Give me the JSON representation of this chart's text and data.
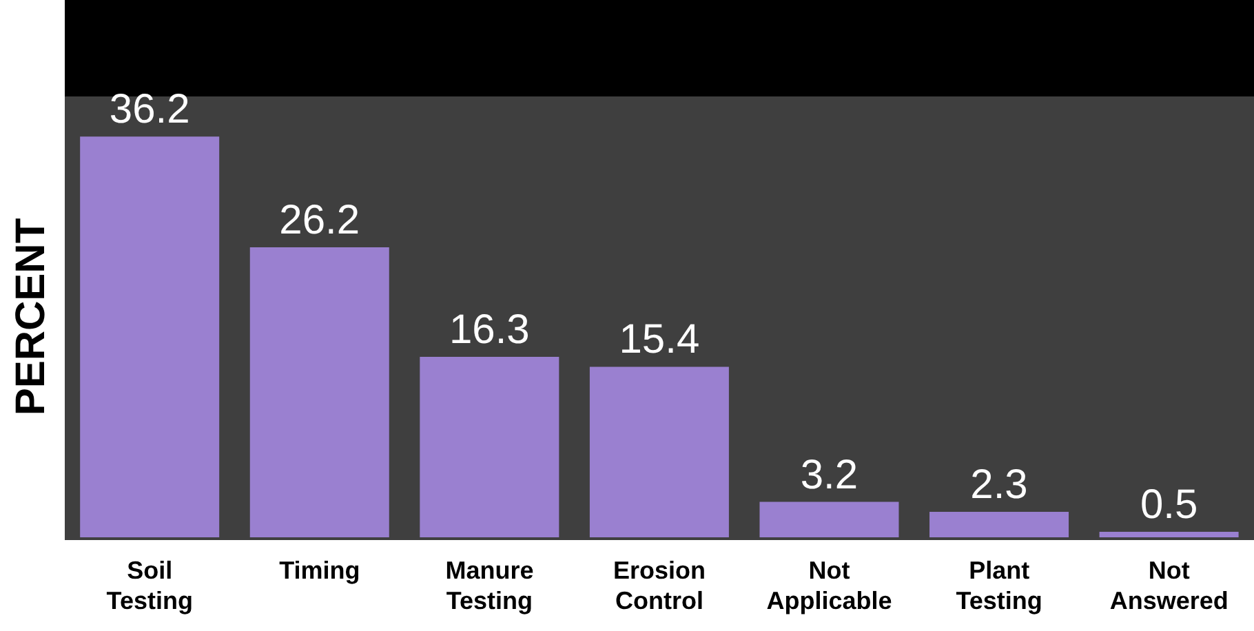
{
  "chart_data": {
    "type": "bar",
    "ylabel": "PERCENT",
    "categories": [
      "Soil Testing",
      "Timing",
      "Manure Testing",
      "Erosion Control",
      "Not Applicable",
      "Plant Testing",
      "Not Answered"
    ],
    "values": [
      36.2,
      26.2,
      16.3,
      15.4,
      3.2,
      2.3,
      0.5
    ],
    "color": "#9a80d0",
    "data_labels": true
  }
}
